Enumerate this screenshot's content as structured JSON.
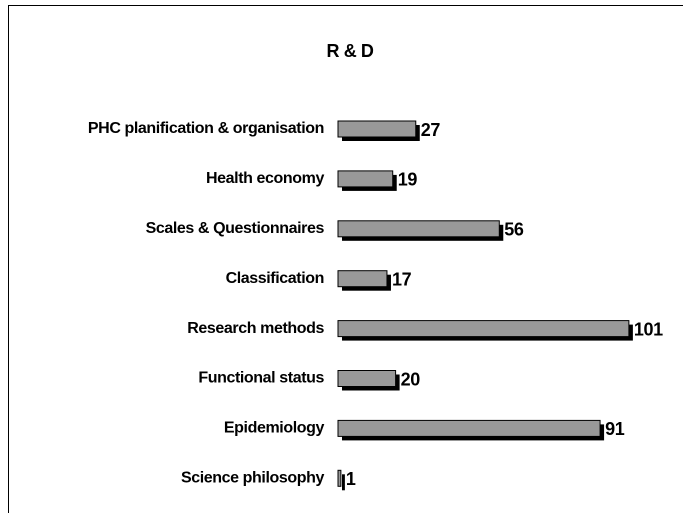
{
  "chart_data": {
    "type": "bar",
    "orientation": "horizontal",
    "title": "R & D",
    "categories": [
      "PHC planification & organisation",
      "Health economy",
      "Scales & Questionnaires",
      "Classification",
      "Research methods",
      "Functional status",
      "Epidemiology",
      "Science philosophy"
    ],
    "values": [
      27,
      19,
      56,
      17,
      101,
      20,
      91,
      1
    ],
    "color": "#999999",
    "shadow_color": "#000000"
  }
}
